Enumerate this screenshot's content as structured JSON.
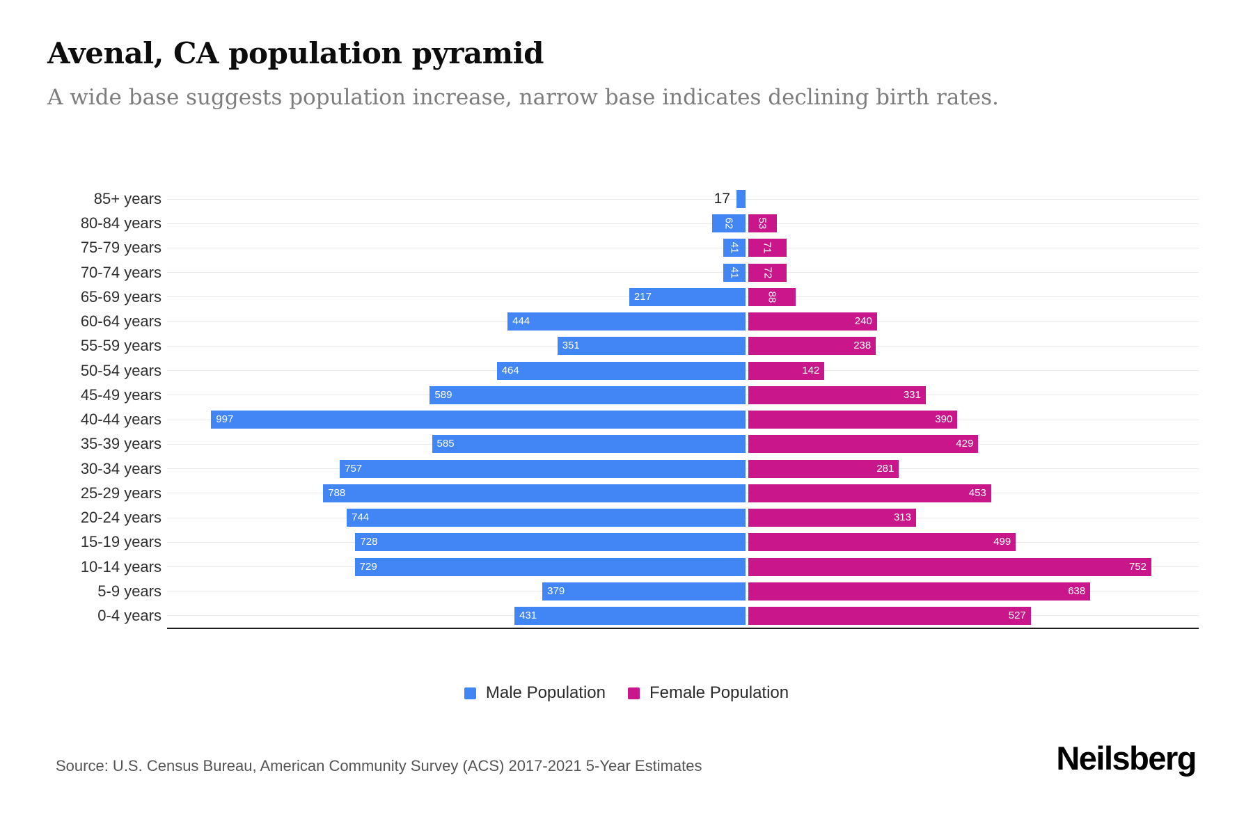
{
  "title": "Avenal, CA population pyramid",
  "subtitle": "A wide base suggests population increase, narrow base indicates declining birth rates.",
  "source": "Source: U.S. Census Bureau, American Community Survey (ACS) 2017-2021 5-Year Estimates",
  "brand": "Neilsberg",
  "legend": {
    "male": "Male Population",
    "female": "Female Population"
  },
  "colors": {
    "male": "#4285F4",
    "female": "#C9168A",
    "grid": "#ebebeb",
    "axis": "#1c1c1c"
  },
  "chart_data": {
    "type": "bar",
    "variant": "population-pyramid",
    "title": "Avenal, CA population pyramid",
    "categories": [
      "85+ years",
      "80-84 years",
      "75-79 years",
      "70-74 years",
      "65-69 years",
      "60-64 years",
      "55-59 years",
      "50-54 years",
      "45-49 years",
      "40-44 years",
      "35-39 years",
      "30-34 years",
      "25-29 years",
      "20-24 years",
      "15-19 years",
      "10-14 years",
      "5-9 years",
      "0-4 years"
    ],
    "series": [
      {
        "name": "Male Population",
        "side": "left",
        "values": [
          17,
          62,
          41,
          41,
          217,
          444,
          351,
          464,
          589,
          997,
          585,
          757,
          788,
          744,
          728,
          729,
          379,
          431
        ]
      },
      {
        "name": "Female Population",
        "side": "right",
        "values": [
          0,
          53,
          71,
          72,
          88,
          240,
          238,
          142,
          331,
          390,
          429,
          281,
          453,
          313,
          499,
          752,
          638,
          527
        ]
      }
    ],
    "xlim": {
      "male_max": 1080,
      "female_max": 845
    },
    "grid": "horizontal-per-row",
    "legend_position": "bottom-center",
    "value_labels": "inside-bars-white, rotated-when-narrow, outside-dark-when-tiny"
  }
}
